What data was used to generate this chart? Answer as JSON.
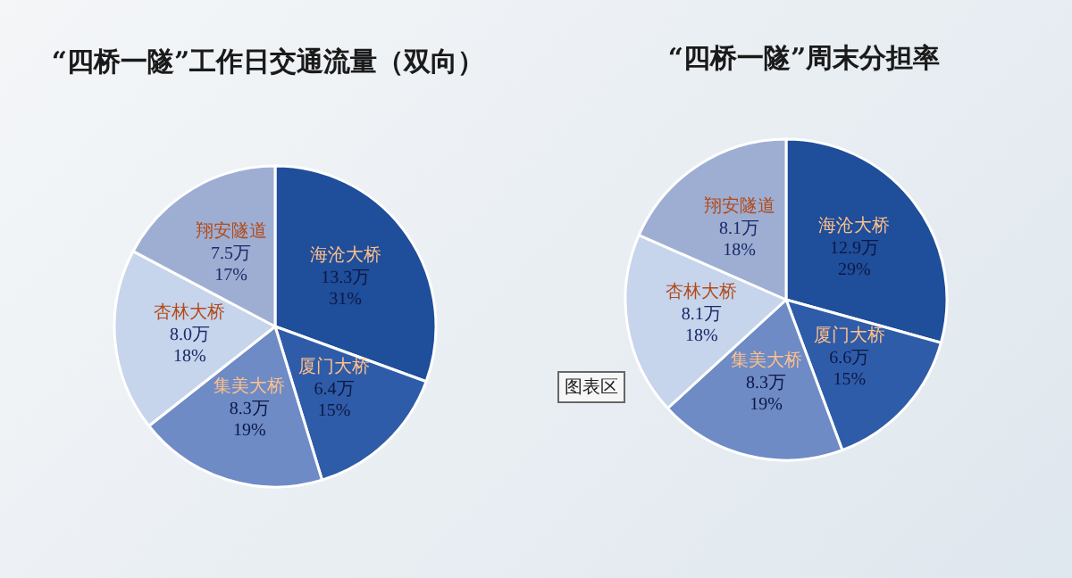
{
  "chart_data": [
    {
      "type": "pie",
      "title": "“四桥一隧”工作日交通流量（双向）",
      "categories": [
        "海沧大桥",
        "厦门大桥",
        "集美大桥",
        "杏林大桥",
        "翔安隧道"
      ],
      "values": [
        13.3,
        6.4,
        8.3,
        8.0,
        7.5
      ],
      "colors": [
        "#1f4e9a",
        "#2f5ca9",
        "#6e8bc6",
        "#c6d4ec",
        "#9eaed3"
      ],
      "value_labels": [
        "13.3万\n31%",
        "6.4万\n15%",
        "8.3万\n19%",
        "8.0万\n18%",
        "7.5万\n17%"
      ]
    },
    {
      "type": "pie",
      "title": "“四桥一隧”周末分担率",
      "categories": [
        "海沧大桥",
        "厦门大桥",
        "集美大桥",
        "杏林大桥",
        "翔安隧道"
      ],
      "values": [
        12.9,
        6.6,
        8.3,
        8.1,
        8.1
      ],
      "colors": [
        "#1f4e9a",
        "#2f5ca9",
        "#6e8bc6",
        "#c6d4ec",
        "#9eaed3"
      ],
      "value_labels": [
        "12.9万\n29%",
        "6.6万\n15%",
        "8.3万\n19%",
        "8.1万\n18%",
        "8.1万\n18%"
      ],
      "annotations": [
        "图表区"
      ]
    }
  ]
}
